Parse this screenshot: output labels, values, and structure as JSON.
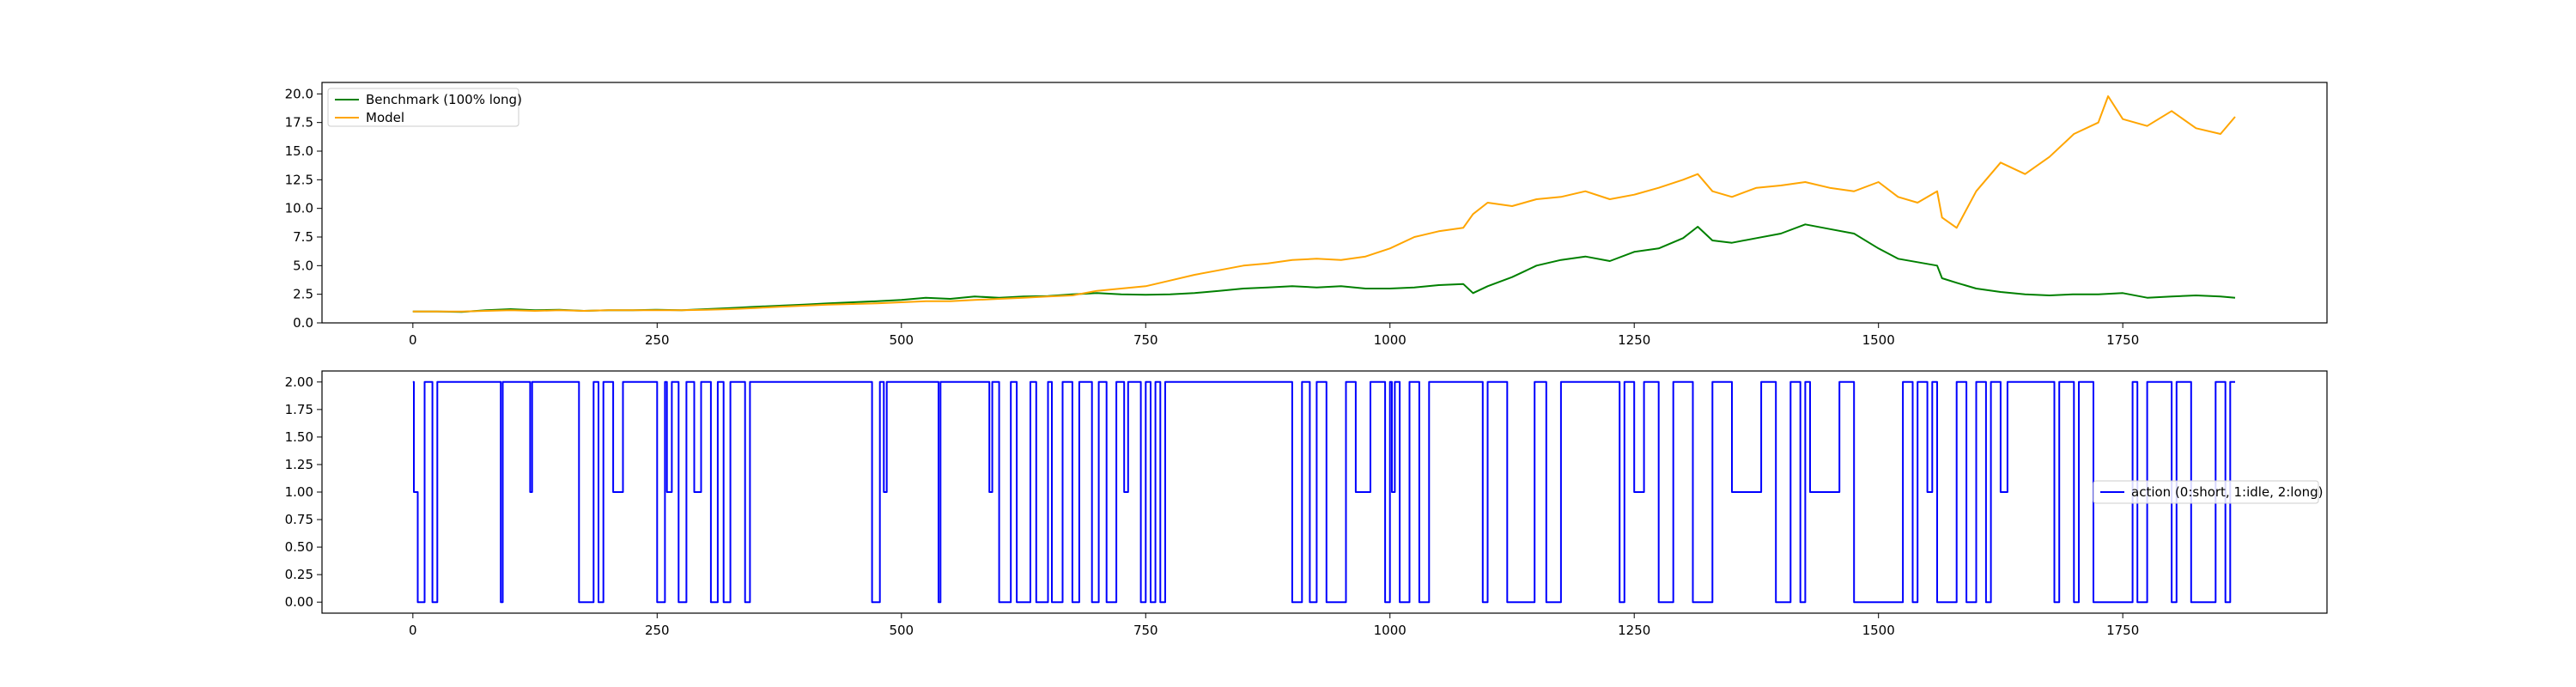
{
  "chart_data": [
    {
      "type": "line",
      "title": "",
      "xlabel": "",
      "ylabel": "",
      "xlim": [
        -93,
        1959
      ],
      "ylim": [
        0,
        21.0
      ],
      "xticks": [
        0,
        250,
        500,
        750,
        1000,
        1250,
        1500,
        1750
      ],
      "yticks": [
        0.0,
        2.5,
        5.0,
        7.5,
        10.0,
        12.5,
        15.0,
        17.5,
        20.0
      ],
      "xtick_labels": [
        "0",
        "250",
        "500",
        "750",
        "1000",
        "1250",
        "1500",
        "1750"
      ],
      "ytick_labels": [
        "0.0",
        "2.5",
        "5.0",
        "7.5",
        "10.0",
        "12.5",
        "15.0",
        "17.5",
        "20.0"
      ],
      "grid": false,
      "legend_placement": "upper-left",
      "series": [
        {
          "name": "Benchmark (100% long)",
          "color": "#008000",
          "x": [
            0,
            25,
            50,
            75,
            100,
            125,
            150,
            175,
            200,
            225,
            250,
            275,
            300,
            325,
            350,
            375,
            400,
            425,
            450,
            475,
            500,
            525,
            550,
            575,
            600,
            625,
            650,
            675,
            700,
            725,
            750,
            775,
            800,
            825,
            850,
            875,
            900,
            925,
            950,
            975,
            1000,
            1025,
            1050,
            1075,
            1085,
            1100,
            1125,
            1150,
            1175,
            1200,
            1225,
            1250,
            1275,
            1300,
            1315,
            1330,
            1350,
            1375,
            1400,
            1425,
            1450,
            1475,
            1500,
            1520,
            1540,
            1560,
            1565,
            1580,
            1600,
            1625,
            1650,
            1675,
            1700,
            1725,
            1750,
            1775,
            1800,
            1825,
            1850,
            1865
          ],
          "y": [
            1.0,
            1.0,
            0.95,
            1.1,
            1.2,
            1.1,
            1.15,
            1.05,
            1.1,
            1.1,
            1.15,
            1.1,
            1.2,
            1.3,
            1.4,
            1.5,
            1.6,
            1.7,
            1.8,
            1.9,
            2.0,
            2.2,
            2.1,
            2.3,
            2.2,
            2.3,
            2.35,
            2.5,
            2.6,
            2.5,
            2.45,
            2.5,
            2.6,
            2.8,
            3.0,
            3.1,
            3.2,
            3.1,
            3.2,
            3.0,
            3.0,
            3.1,
            3.3,
            3.4,
            2.6,
            3.2,
            4.0,
            5.0,
            5.5,
            5.8,
            5.4,
            6.2,
            6.5,
            7.4,
            8.4,
            7.2,
            7.0,
            7.4,
            7.8,
            8.6,
            8.2,
            7.8,
            6.5,
            5.6,
            5.3,
            5.0,
            3.9,
            3.5,
            3.0,
            2.7,
            2.5,
            2.4,
            2.5,
            2.5,
            2.6,
            2.2,
            2.3,
            2.4,
            2.3,
            2.2
          ]
        },
        {
          "name": "Model",
          "color": "#FFA500",
          "x": [
            0,
            25,
            50,
            75,
            100,
            125,
            150,
            175,
            200,
            225,
            250,
            275,
            300,
            325,
            350,
            375,
            400,
            425,
            450,
            475,
            500,
            525,
            550,
            575,
            600,
            625,
            650,
            675,
            700,
            725,
            750,
            775,
            800,
            825,
            850,
            875,
            900,
            925,
            950,
            975,
            1000,
            1025,
            1050,
            1075,
            1085,
            1100,
            1125,
            1150,
            1175,
            1200,
            1225,
            1250,
            1275,
            1300,
            1315,
            1330,
            1350,
            1375,
            1400,
            1425,
            1450,
            1475,
            1500,
            1520,
            1540,
            1560,
            1565,
            1580,
            1600,
            1625,
            1650,
            1675,
            1700,
            1725,
            1735,
            1750,
            1775,
            1800,
            1825,
            1850,
            1865
          ],
          "y": [
            1.0,
            1.0,
            1.0,
            1.05,
            1.1,
            1.05,
            1.1,
            1.05,
            1.1,
            1.1,
            1.1,
            1.1,
            1.15,
            1.2,
            1.3,
            1.4,
            1.5,
            1.6,
            1.65,
            1.7,
            1.8,
            1.9,
            1.9,
            2.0,
            2.1,
            2.2,
            2.3,
            2.4,
            2.8,
            3.0,
            3.2,
            3.7,
            4.2,
            4.6,
            5.0,
            5.2,
            5.5,
            5.6,
            5.5,
            5.8,
            6.5,
            7.5,
            8.0,
            8.3,
            9.5,
            10.5,
            10.2,
            10.8,
            11.0,
            11.5,
            10.8,
            11.2,
            11.8,
            12.5,
            13.0,
            11.5,
            11.0,
            11.8,
            12.0,
            12.3,
            11.8,
            11.5,
            12.3,
            11.0,
            10.5,
            11.5,
            9.2,
            8.3,
            11.5,
            14.0,
            13.0,
            14.5,
            16.5,
            17.5,
            19.8,
            17.8,
            17.2,
            18.5,
            17.0,
            16.5,
            18.0
          ]
        }
      ]
    },
    {
      "type": "line",
      "title": "",
      "xlabel": "",
      "ylabel": "",
      "xlim": [
        -93,
        1959
      ],
      "ylim": [
        -0.1,
        2.1
      ],
      "xticks": [
        0,
        250,
        500,
        750,
        1000,
        1250,
        1500,
        1750
      ],
      "yticks": [
        0.0,
        0.25,
        0.5,
        0.75,
        1.0,
        1.25,
        1.5,
        1.75,
        2.0
      ],
      "xtick_labels": [
        "0",
        "250",
        "500",
        "750",
        "1000",
        "1250",
        "1500",
        "1750"
      ],
      "ytick_labels": [
        "0.00",
        "0.25",
        "0.50",
        "0.75",
        "1.00",
        "1.25",
        "1.50",
        "1.75",
        "2.00"
      ],
      "grid": false,
      "legend_placement": "center-right",
      "series": [
        {
          "name": "action (0:short, 1:idle, 2:long)",
          "color": "#0000FF",
          "x": [
            0,
            1,
            5,
            12,
            20,
            25,
            32,
            90,
            92,
            95,
            120,
            122,
            170,
            185,
            190,
            195,
            205,
            215,
            220,
            250,
            258,
            260,
            265,
            272,
            280,
            288,
            295,
            305,
            312,
            318,
            325,
            340,
            345,
            395,
            405,
            470,
            478,
            482,
            485,
            492,
            538,
            540,
            550,
            555,
            590,
            593,
            600,
            612,
            618,
            632,
            638,
            650,
            654,
            665,
            675,
            682,
            695,
            702,
            710,
            720,
            728,
            732,
            745,
            750,
            755,
            760,
            765,
            770,
            790,
            900,
            910,
            918,
            925,
            935,
            955,
            965,
            980,
            995,
            1000,
            1002,
            1005,
            1010,
            1020,
            1030,
            1040,
            1080,
            1095,
            1100,
            1120,
            1148,
            1160,
            1175,
            1235,
            1240,
            1250,
            1260,
            1275,
            1290,
            1310,
            1330,
            1350,
            1380,
            1395,
            1410,
            1420,
            1425,
            1430,
            1460,
            1465,
            1475,
            1525,
            1535,
            1540,
            1550,
            1555,
            1560,
            1580,
            1590,
            1600,
            1610,
            1615,
            1625,
            1632,
            1680,
            1685,
            1700,
            1705,
            1720,
            1760,
            1765,
            1775,
            1800,
            1805,
            1820,
            1845,
            1855,
            1860
          ],
          "y": [
            2,
            1,
            0,
            2,
            0,
            2,
            2,
            0,
            2,
            2,
            1,
            2,
            0,
            2,
            0,
            2,
            1,
            2,
            2,
            0,
            2,
            1,
            2,
            0,
            2,
            1,
            2,
            0,
            2,
            0,
            2,
            0,
            2,
            2,
            2,
            0,
            2,
            1,
            2,
            2,
            0,
            2,
            2,
            2,
            1,
            2,
            0,
            2,
            0,
            2,
            0,
            2,
            0,
            2,
            0,
            2,
            0,
            2,
            0,
            2,
            1,
            2,
            0,
            2,
            0,
            2,
            0,
            2,
            2,
            0,
            2,
            0,
            2,
            0,
            2,
            1,
            2,
            0,
            2,
            1,
            2,
            0,
            2,
            0,
            2,
            2,
            0,
            2,
            0,
            2,
            0,
            2,
            0,
            2,
            1,
            2,
            0,
            2,
            0,
            2,
            1,
            2,
            0,
            2,
            0,
            2,
            1,
            2,
            2,
            0,
            2,
            0,
            2,
            1,
            2,
            0,
            2,
            0,
            2,
            0,
            2,
            1,
            2,
            0,
            2,
            0,
            2,
            0,
            2,
            0,
            2,
            0,
            2,
            0,
            2,
            0,
            2
          ]
        }
      ]
    }
  ]
}
